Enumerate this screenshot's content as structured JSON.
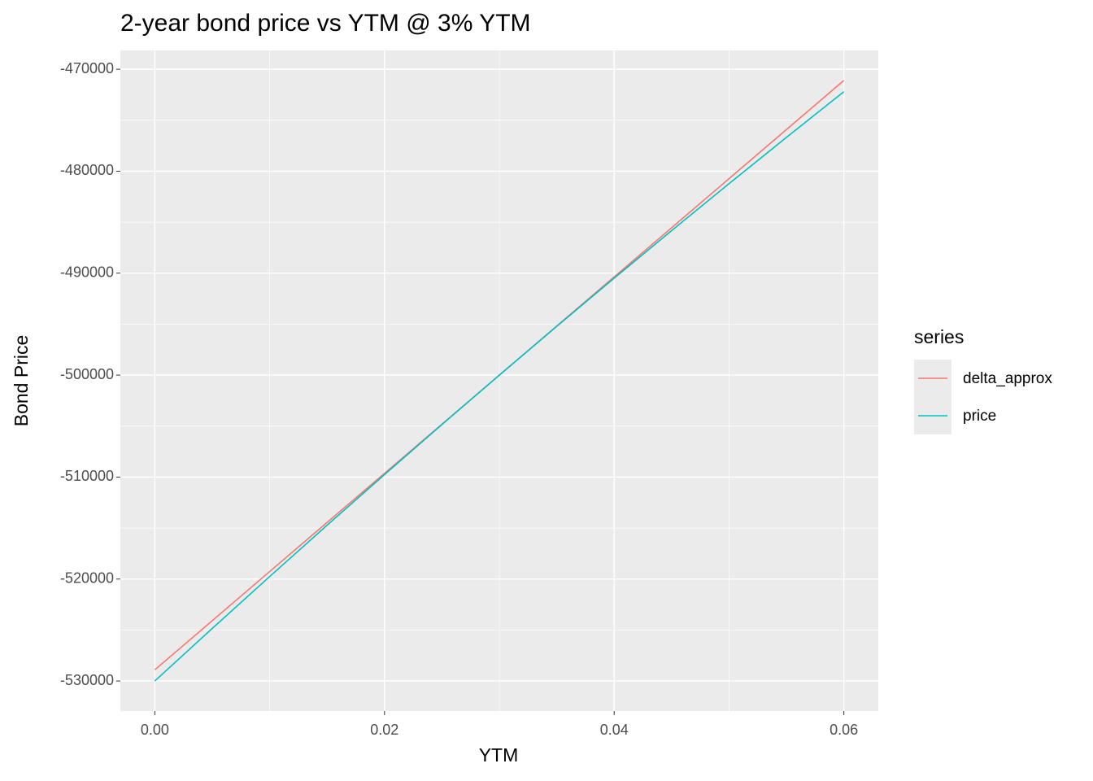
{
  "chart_data": {
    "type": "line",
    "title": "2-year bond price vs YTM @ 3% YTM",
    "x_label": "YTM",
    "y_label": "Bond Price",
    "legend_title": "series",
    "legend_position": "right",
    "grid": true,
    "x": [
      0,
      0.005,
      0.01,
      0.015,
      0.02,
      0.025,
      0.03,
      0.035,
      0.04,
      0.045,
      0.05,
      0.055,
      0.06
    ],
    "series": [
      {
        "name": "delta_approx",
        "color": "#F8766D",
        "values": [
          -528900,
          -524083,
          -519267,
          -514450,
          -509633,
          -504817,
          -500000,
          -495183,
          -490367,
          -485550,
          -480733,
          -475917,
          -471100
        ]
      },
      {
        "name": "price",
        "color": "#00BFC4",
        "values": [
          -530000,
          -524847,
          -519756,
          -514725,
          -509755,
          -504848,
          -500000,
          -495214,
          -490489,
          -485825,
          -481222,
          -476681,
          -472200
        ]
      }
    ],
    "xlim": [
      -0.003,
      0.063
    ],
    "xticks": [
      {
        "value": 0,
        "label": "0.00"
      },
      0.02,
      0.04,
      0.06
    ],
    "ylim": [
      -532945,
      -468155
    ],
    "yticks": [
      -470000,
      -480000,
      -490000,
      -500000,
      -510000,
      -520000,
      -530000
    ]
  }
}
